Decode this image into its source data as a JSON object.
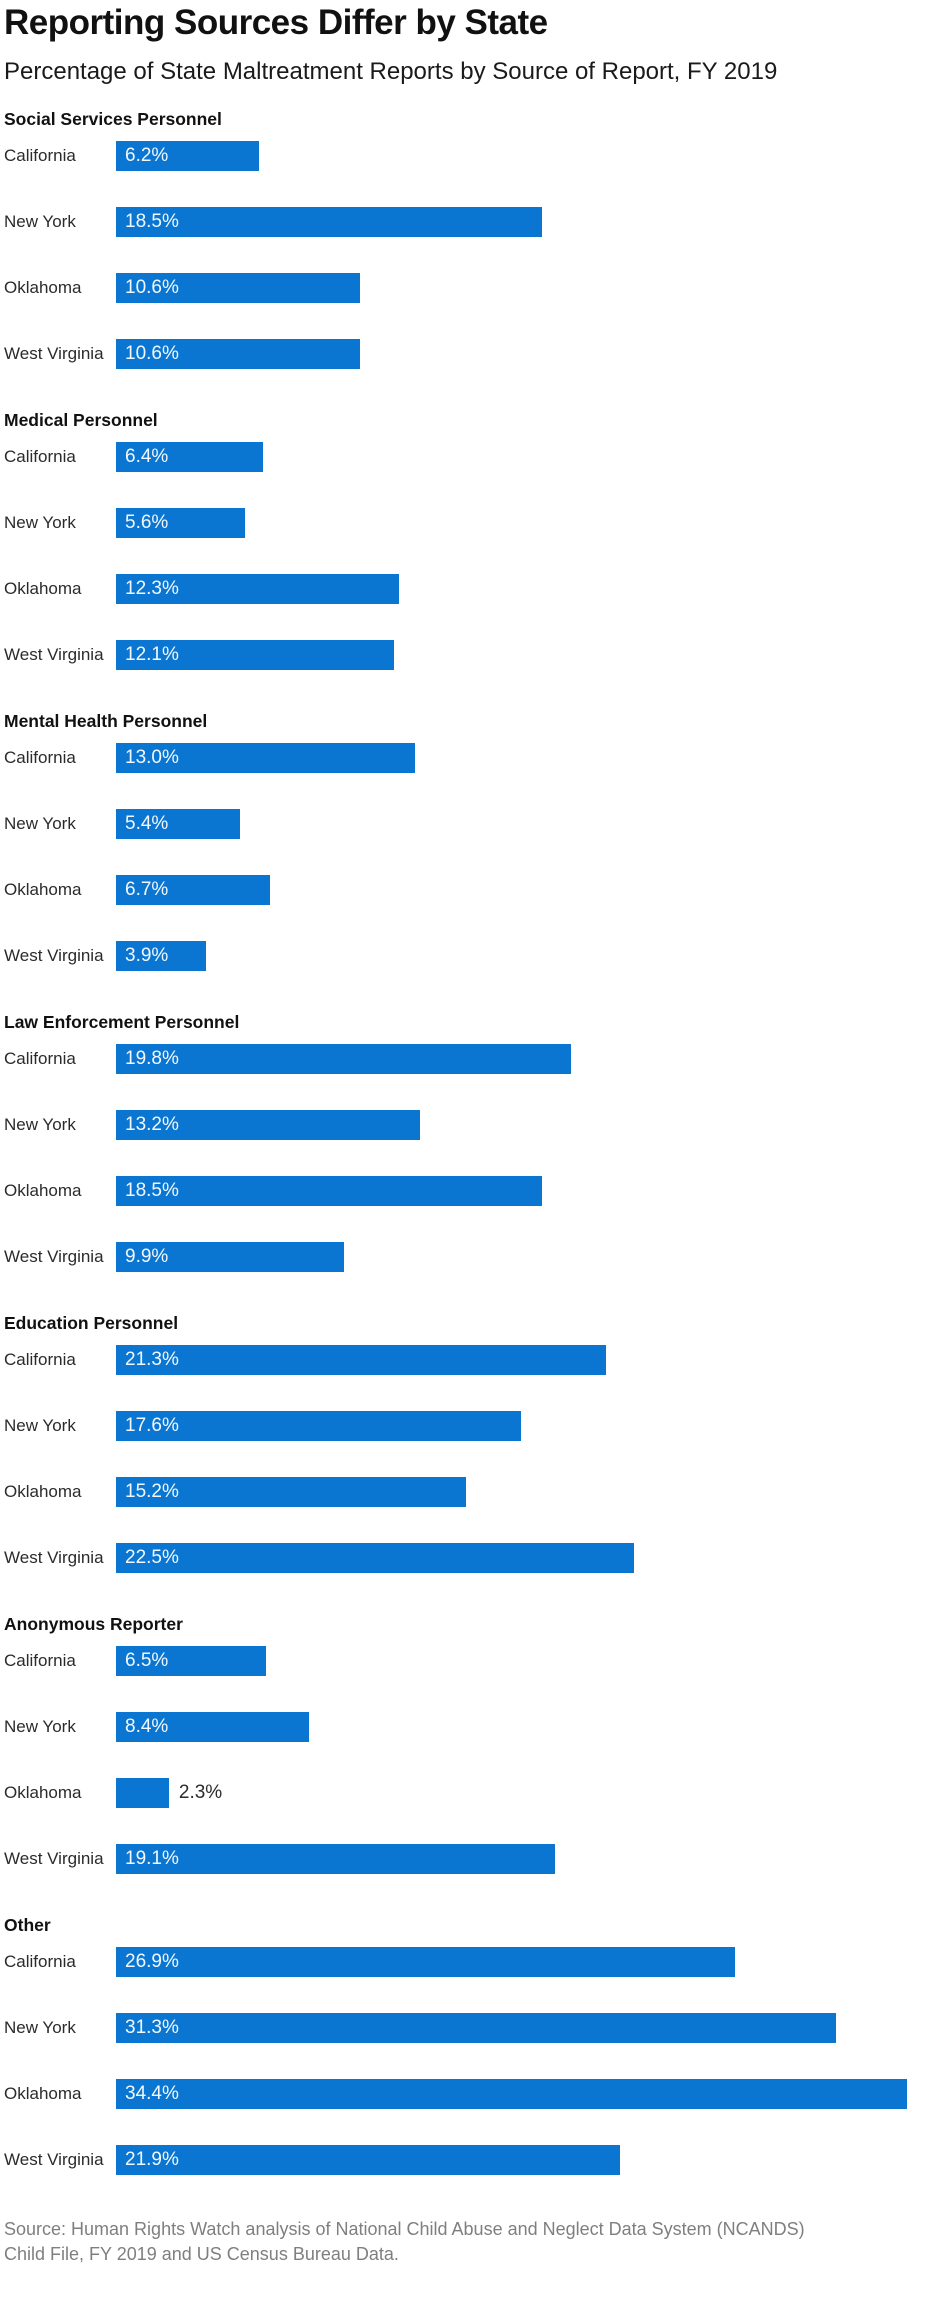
{
  "header": {
    "title": "Reporting Sources Differ by State",
    "subtitle": "Percentage of State Maltreatment Reports by Source of Report, FY 2019"
  },
  "chart_data": {
    "type": "bar",
    "orientation": "horizontal",
    "unit": "percent of state maltreatment reports",
    "value_suffix": "%",
    "categories": [
      "California",
      "New York",
      "Oklahoma",
      "West Virginia"
    ],
    "series": [
      {
        "name": "Social Services Personnel",
        "values": [
          6.2,
          18.5,
          10.6,
          10.6
        ]
      },
      {
        "name": "Medical Personnel",
        "values": [
          6.4,
          5.6,
          12.3,
          12.1
        ]
      },
      {
        "name": "Mental Health Personnel",
        "values": [
          13.0,
          5.4,
          6.7,
          3.9
        ]
      },
      {
        "name": "Law Enforcement Personnel",
        "values": [
          19.8,
          13.2,
          18.5,
          9.9
        ]
      },
      {
        "name": "Education Personnel",
        "values": [
          21.3,
          17.6,
          15.2,
          22.5
        ]
      },
      {
        "name": "Anonymous Reporter",
        "values": [
          6.5,
          8.4,
          2.3,
          19.1
        ]
      },
      {
        "name": "Other",
        "values": [
          26.9,
          31.3,
          34.4,
          21.9
        ]
      }
    ],
    "xlim": [
      0,
      36
    ],
    "grid": false,
    "legend": "none",
    "value_labels": "shown, one decimal place, inside bar (outside when bar too short)",
    "bar_color": "#0b76d1"
  },
  "footer": {
    "source_line1": "Source: Human Rights Watch analysis of National Child Abuse and Neglect Data System (NCANDS)",
    "source_line2": "Child File, FY 2019 and US Census Bureau Data."
  },
  "colors": {
    "bar": "#0b76d1",
    "title_text": "#111111",
    "state_label_text": "#2b2b2b",
    "value_text_inside": "#f2f8fd",
    "value_text_outside": "#2b2b2b",
    "source_text": "#7f7f7f",
    "background": "#ffffff"
  }
}
